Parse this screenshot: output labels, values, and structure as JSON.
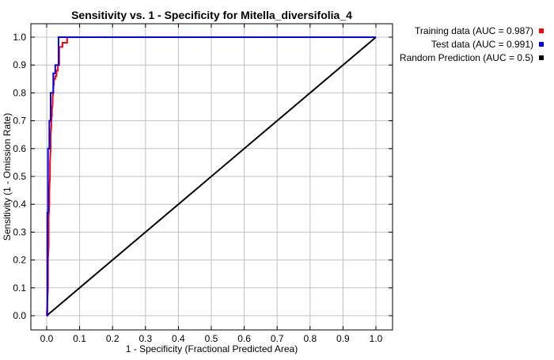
{
  "chart_data": {
    "type": "line",
    "title": "Sensitivity vs. 1 - Specificity for Mitella_diversifolia_4",
    "xlabel": "1 - Specificity  (Fractional Predicted Area)",
    "ylabel": "Sensitivity  (1 - Omission Rate)",
    "xlim": [
      0,
      1
    ],
    "ylim": [
      0,
      1
    ],
    "x_ticks": [
      "0.0",
      "0.1",
      "0.2",
      "0.3",
      "0.4",
      "0.5",
      "0.6",
      "0.7",
      "0.8",
      "0.9",
      "1.0"
    ],
    "y_ticks": [
      "0.0",
      "0.1",
      "0.2",
      "0.3",
      "0.4",
      "0.5",
      "0.6",
      "0.7",
      "0.8",
      "0.9",
      "1.0"
    ],
    "grid": true,
    "legend_position": "outside-right-top",
    "series": [
      {
        "name": "Training data (AUC = 0.987)",
        "color": "#ff0000",
        "x": [
          0.0,
          0.002,
          0.004,
          0.004,
          0.006,
          0.006,
          0.008,
          0.008,
          0.01,
          0.01,
          0.012,
          0.012,
          0.014,
          0.014,
          0.016,
          0.016,
          0.018,
          0.018,
          0.02,
          0.02,
          0.022,
          0.022,
          0.026,
          0.026,
          0.03,
          0.03,
          0.034,
          0.034,
          0.038,
          0.038,
          0.048,
          0.048,
          0.062,
          0.062,
          0.1,
          1.0
        ],
        "y": [
          0.0,
          0.05,
          0.1,
          0.2,
          0.25,
          0.35,
          0.4,
          0.45,
          0.5,
          0.55,
          0.6,
          0.65,
          0.68,
          0.7,
          0.72,
          0.74,
          0.76,
          0.78,
          0.8,
          0.82,
          0.83,
          0.85,
          0.85,
          0.86,
          0.86,
          0.88,
          0.88,
          0.9,
          0.9,
          0.965,
          0.965,
          0.98,
          0.98,
          1.0,
          1.0,
          1.0
        ]
      },
      {
        "name": "Test data (AUC = 0.991)",
        "color": "#0000ff",
        "x": [
          0.0,
          0.002,
          0.002,
          0.004,
          0.004,
          0.008,
          0.008,
          0.012,
          0.012,
          0.02,
          0.02,
          0.026,
          0.026,
          0.036,
          0.036,
          0.1,
          1.0
        ],
        "y": [
          0.0,
          0.0,
          0.37,
          0.37,
          0.6,
          0.6,
          0.7,
          0.7,
          0.8,
          0.8,
          0.87,
          0.87,
          0.9,
          0.9,
          1.0,
          1.0,
          1.0
        ]
      },
      {
        "name": "Random Prediction (AUC = 0.5)",
        "color": "#000000",
        "x": [
          0.0,
          1.0
        ],
        "y": [
          0.0,
          1.0
        ]
      }
    ]
  }
}
